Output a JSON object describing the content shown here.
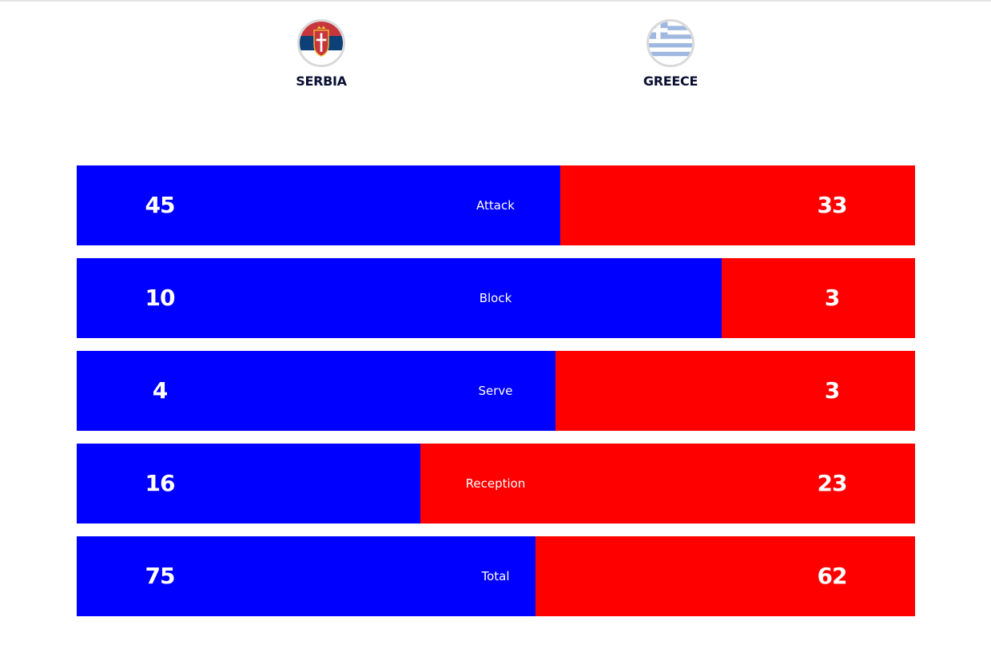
{
  "header": {
    "home_team": {
      "name": "SERBIA",
      "flag_icon": "serbia-flag-icon"
    },
    "away_team": {
      "name": "GREECE",
      "flag_icon": "greece-flag-icon"
    }
  },
  "colors": {
    "home": "#0000ff",
    "away": "#ff0000",
    "team_name": "#0b1033",
    "flag_ring": "#d9d9d9"
  },
  "chart_data": {
    "type": "bar",
    "orientation": "horizontal",
    "stacked": true,
    "categories": [
      "Attack",
      "Block",
      "Serve",
      "Reception",
      "Total"
    ],
    "series": [
      {
        "name": "SERBIA",
        "values": [
          45,
          10,
          4,
          16,
          75
        ]
      },
      {
        "name": "GREECE",
        "values": [
          33,
          3,
          3,
          23,
          62
        ]
      }
    ]
  }
}
